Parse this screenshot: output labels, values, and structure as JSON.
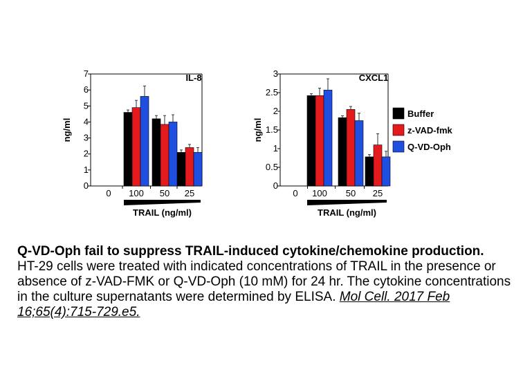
{
  "chart_data": [
    {
      "type": "bar",
      "title": "IL-8",
      "ylabel": "ng/ml",
      "xlabel": "TRAIL (ng/ml)",
      "categories": [
        "0",
        "100",
        "50",
        "25"
      ],
      "ylim": [
        0,
        7
      ],
      "yticks": [
        0,
        1,
        2,
        3,
        4,
        5,
        6,
        7
      ],
      "series": [
        {
          "name": "Buffer",
          "values": [
            0,
            4.6,
            4.2,
            2.1
          ],
          "errors": [
            0,
            0.15,
            0.2,
            0.15
          ]
        },
        {
          "name": "z-VAD-fmk",
          "values": [
            0,
            4.9,
            3.85,
            2.4
          ],
          "errors": [
            0,
            0.45,
            0.55,
            0.2
          ]
        },
        {
          "name": "Q-VD-Oph",
          "values": [
            0,
            5.6,
            4.0,
            2.1
          ],
          "errors": [
            0,
            0.65,
            0.45,
            0.3
          ]
        }
      ],
      "grid": false
    },
    {
      "type": "bar",
      "title": "CXCL1",
      "ylabel": "ng/ml",
      "xlabel": "TRAIL (ng/ml)",
      "categories": [
        "0",
        "100",
        "50",
        "25"
      ],
      "ylim": [
        0,
        3
      ],
      "yticks": [
        0,
        0.5,
        1,
        1.5,
        2,
        2.5,
        3
      ],
      "series": [
        {
          "name": "Buffer",
          "values": [
            0,
            2.42,
            1.83,
            0.78
          ],
          "errors": [
            0,
            0.05,
            0.05,
            0.06
          ]
        },
        {
          "name": "z-VAD-fmk",
          "values": [
            0,
            2.42,
            2.05,
            1.1
          ],
          "errors": [
            0,
            0.2,
            0.08,
            0.3
          ]
        },
        {
          "name": "Q-VD-Oph",
          "values": [
            0,
            2.57,
            1.75,
            0.78
          ],
          "errors": [
            0,
            0.3,
            0.2,
            0.15
          ]
        }
      ],
      "grid": false
    }
  ],
  "legend": {
    "placement": "right",
    "items": [
      {
        "name": "Buffer",
        "color": "#000000"
      },
      {
        "name": "z-VAD-fmk",
        "color": "#e41a1c"
      },
      {
        "name": "Q-VD-Oph",
        "color": "#1f4fe0"
      }
    ]
  },
  "caption": {
    "title": "Q-VD-Oph fail to suppress TRAIL-induced cytokine/chemokine production.",
    "body": "HT-29 cells were treated with indicated concentrations of TRAIL in the presence or absence of z-VAD-FMK or Q-VD-Oph (10 mM) for 24 hr. The cytokine concentrations in the culture supernatants were determined by ELISA.",
    "reference": "Mol Cell. 2017 Feb 16;65(4):715-729.e5."
  }
}
